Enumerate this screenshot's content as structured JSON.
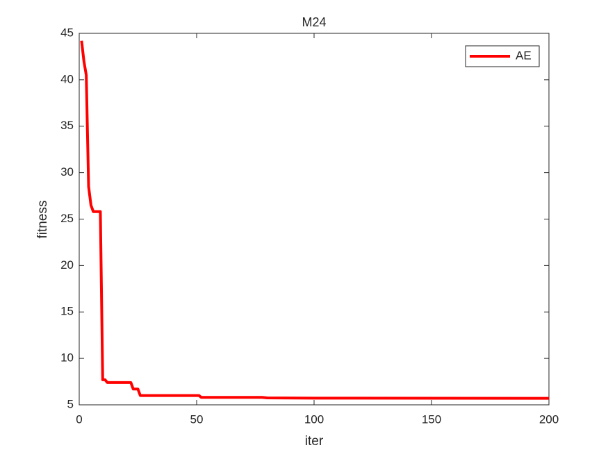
{
  "chart_data": {
    "type": "line",
    "title": "M24",
    "xlabel": "iter",
    "ylabel": "fitness",
    "x": [
      1,
      2,
      3,
      4,
      5,
      6,
      9,
      10,
      11,
      12,
      22,
      23,
      25,
      26,
      51,
      52,
      78,
      80,
      100,
      200
    ],
    "series": [
      {
        "name": "AE",
        "color": "#ff0000",
        "values": [
          44.2,
          42,
          40.5,
          28.5,
          26.5,
          25.8,
          25.8,
          7.7,
          7.7,
          7.4,
          7.4,
          6.7,
          6.7,
          6.0,
          6.0,
          5.8,
          5.8,
          5.75,
          5.72,
          5.7
        ]
      }
    ],
    "xlim": [
      0,
      200
    ],
    "xticks": [
      0,
      50,
      100,
      150,
      200
    ],
    "ylim": [
      5,
      45
    ],
    "yticks": [
      5,
      10,
      15,
      20,
      25,
      30,
      35,
      40,
      45
    ],
    "grid": false,
    "legend": "northeast"
  }
}
